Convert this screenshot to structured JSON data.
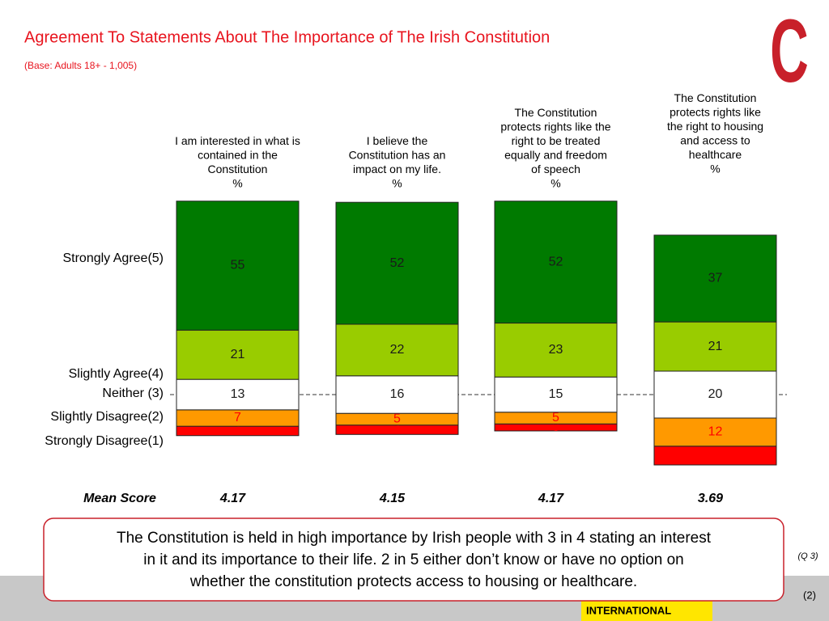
{
  "chart_data": {
    "type": "stacked_bar",
    "title": "Agreement To Statements About The Importance of The Irish Constitution",
    "subtitle": "(Base: Adults 18+ - 1,005)",
    "categories": [
      [
        "I am interested in what is",
        "contained in the",
        "Constitution"
      ],
      [
        "I believe the",
        "Constitution has an",
        "impact on my life."
      ],
      [
        "The Constitution",
        "protects rights like the",
        "right to be treated",
        "equally and freedom",
        "of speech"
      ],
      [
        "The Constitution",
        "protects rights like",
        "the right to housing",
        "and access to",
        "healthcare"
      ]
    ],
    "unit": "%",
    "series": [
      {
        "name": "Strongly Agree(5)",
        "color": "#007a00",
        "label_color": "#1a1a1a",
        "values": [
          55,
          52,
          52,
          37
        ]
      },
      {
        "name": "Slightly Agree(4)",
        "color": "#99cc00",
        "label_color": "#1a1a1a",
        "values": [
          21,
          22,
          23,
          21
        ]
      },
      {
        "name": "Neither (3)",
        "color": "#ffffff",
        "label_color": "#1a1a1a",
        "values": [
          13,
          16,
          15,
          20
        ]
      },
      {
        "name": "Slightly Disagree(2)",
        "color": "#ff9900",
        "label_color": "#ff0000",
        "values": [
          7,
          5,
          5,
          12
        ]
      },
      {
        "name": "Strongly Disagree(1)",
        "color": "#ff0000",
        "label_color": "#ff0000",
        "values": [
          4,
          4,
          3,
          8
        ]
      }
    ],
    "mean_label": "Mean Score",
    "mean_values": [
      4.17,
      4.15,
      4.17,
      3.69
    ],
    "callout": [
      "The Constitution is held in high importance by Irish people with 3 in 4 stating an interest",
      "in it and its importance to their life. 2 in 5 either don’t know or have no option on",
      "whether the constitution protects access to housing or healthcare."
    ],
    "question_ref": "(Q 3)",
    "page_number": "(2)",
    "logo": "C",
    "sponsor": "INTERNATIONAL"
  }
}
